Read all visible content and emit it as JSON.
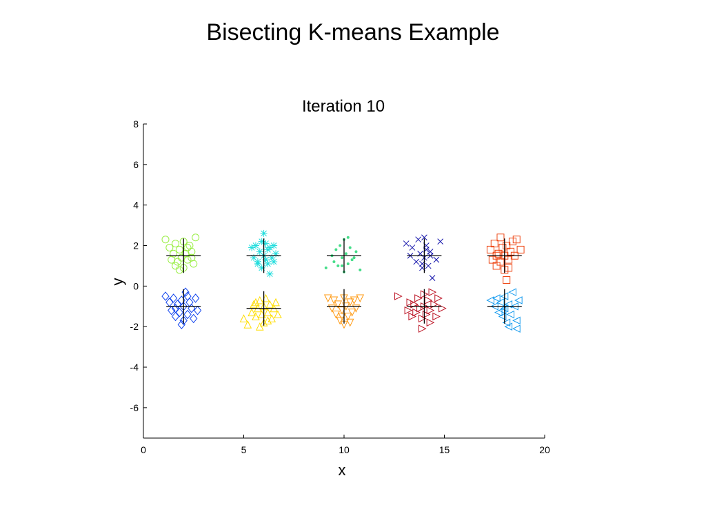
{
  "slide": {
    "title": "Bisecting K-means Example"
  },
  "chart_data": {
    "type": "scatter",
    "title": "Iteration 10",
    "xlabel": "x",
    "ylabel": "y",
    "xlim": [
      0,
      20
    ],
    "ylim": [
      -7.5,
      8
    ],
    "xticks": [
      0,
      5,
      10,
      15,
      20
    ],
    "yticks": [
      -6,
      -4,
      -2,
      0,
      2,
      4,
      6,
      8
    ],
    "grid": false,
    "series": [
      {
        "marker": "circle",
        "color": "#99ee44",
        "centroid": [
          2,
          1.5
        ],
        "points": [
          [
            1.1,
            2.3
          ],
          [
            1.3,
            1.9
          ],
          [
            1.5,
            1.6
          ],
          [
            1.6,
            2.1
          ],
          [
            1.7,
            1.2
          ],
          [
            1.8,
            1.8
          ],
          [
            1.9,
            1.4
          ],
          [
            2.0,
            2.2
          ],
          [
            2.0,
            0.9
          ],
          [
            2.1,
            1.6
          ],
          [
            2.2,
            1.3
          ],
          [
            2.3,
            2.0
          ],
          [
            2.4,
            1.7
          ],
          [
            2.5,
            1.1
          ],
          [
            2.6,
            2.4
          ],
          [
            1.4,
            1.3
          ],
          [
            1.8,
            0.8
          ],
          [
            2.2,
            1.9
          ],
          [
            1.6,
            1.0
          ],
          [
            2.4,
            1.4
          ]
        ]
      },
      {
        "marker": "asterisk",
        "color": "#22dddd",
        "centroid": [
          6,
          1.5
        ],
        "points": [
          [
            5.4,
            1.9
          ],
          [
            5.5,
            1.4
          ],
          [
            5.6,
            2.0
          ],
          [
            5.7,
            1.2
          ],
          [
            5.8,
            1.7
          ],
          [
            5.9,
            0.9
          ],
          [
            6.0,
            2.6
          ],
          [
            6.0,
            1.5
          ],
          [
            6.1,
            2.1
          ],
          [
            6.2,
            1.1
          ],
          [
            6.2,
            1.8
          ],
          [
            6.3,
            0.6
          ],
          [
            6.4,
            1.4
          ],
          [
            6.5,
            2.0
          ],
          [
            6.6,
            1.6
          ],
          [
            5.7,
            1.1
          ],
          [
            6.1,
            1.3
          ],
          [
            5.9,
            2.2
          ],
          [
            6.3,
            1.9
          ],
          [
            6.5,
            1.2
          ]
        ]
      },
      {
        "marker": "dot",
        "color": "#44dd88",
        "centroid": [
          10,
          1.5
        ],
        "points": [
          [
            9.1,
            0.9
          ],
          [
            9.4,
            1.5
          ],
          [
            9.5,
            1.2
          ],
          [
            9.6,
            1.8
          ],
          [
            9.7,
            1.0
          ],
          [
            9.8,
            2.0
          ],
          [
            9.9,
            1.4
          ],
          [
            10.0,
            2.3
          ],
          [
            10.0,
            0.7
          ],
          [
            10.1,
            1.6
          ],
          [
            10.2,
            1.1
          ],
          [
            10.3,
            1.9
          ],
          [
            10.4,
            1.3
          ],
          [
            10.6,
            1.7
          ],
          [
            10.8,
            0.8
          ],
          [
            9.9,
            1.0
          ],
          [
            10.2,
            2.4
          ],
          [
            10.5,
            1.4
          ]
        ]
      },
      {
        "marker": "x",
        "color": "#1111aa",
        "centroid": [
          14,
          1.5
        ],
        "points": [
          [
            13.1,
            2.1
          ],
          [
            13.3,
            1.5
          ],
          [
            13.4,
            1.9
          ],
          [
            13.6,
            1.2
          ],
          [
            13.7,
            2.3
          ],
          [
            13.8,
            1.6
          ],
          [
            13.9,
            0.9
          ],
          [
            14.0,
            2.4
          ],
          [
            14.0,
            1.4
          ],
          [
            14.1,
            1.8
          ],
          [
            14.2,
            1.0
          ],
          [
            14.3,
            1.7
          ],
          [
            14.4,
            0.4
          ],
          [
            14.6,
            1.3
          ],
          [
            14.8,
            2.2
          ],
          [
            13.9,
            1.1
          ],
          [
            14.1,
            2.0
          ],
          [
            14.3,
            1.5
          ]
        ]
      },
      {
        "marker": "square",
        "color": "#ee4411",
        "centroid": [
          18,
          1.5
        ],
        "points": [
          [
            17.3,
            1.8
          ],
          [
            17.4,
            1.3
          ],
          [
            17.5,
            2.1
          ],
          [
            17.6,
            1.0
          ],
          [
            17.7,
            1.6
          ],
          [
            17.8,
            2.4
          ],
          [
            17.8,
            1.2
          ],
          [
            17.9,
            1.9
          ],
          [
            18.0,
            0.8
          ],
          [
            18.0,
            1.5
          ],
          [
            18.1,
            2.0
          ],
          [
            18.1,
            0.3
          ],
          [
            18.2,
            1.3
          ],
          [
            18.3,
            1.7
          ],
          [
            18.4,
            2.2
          ],
          [
            18.5,
            1.5
          ],
          [
            18.6,
            2.3
          ],
          [
            18.8,
            1.8
          ],
          [
            17.6,
            1.5
          ],
          [
            18.2,
            0.9
          ]
        ]
      },
      {
        "marker": "diamond",
        "color": "#1144ee",
        "centroid": [
          2,
          -1
        ],
        "points": [
          [
            1.1,
            -0.5
          ],
          [
            1.3,
            -0.8
          ],
          [
            1.4,
            -1.2
          ],
          [
            1.5,
            -0.6
          ],
          [
            1.6,
            -1.5
          ],
          [
            1.7,
            -0.9
          ],
          [
            1.8,
            -1.3
          ],
          [
            1.9,
            -0.7
          ],
          [
            2.0,
            -1.7
          ],
          [
            2.0,
            -1.0
          ],
          [
            2.1,
            -0.3
          ],
          [
            2.2,
            -1.4
          ],
          [
            2.3,
            -0.8
          ],
          [
            2.4,
            -1.1
          ],
          [
            2.5,
            -1.6
          ],
          [
            2.6,
            -0.6
          ],
          [
            2.7,
            -1.2
          ],
          [
            1.9,
            -1.9
          ],
          [
            2.2,
            -0.5
          ],
          [
            1.6,
            -1.1
          ]
        ]
      },
      {
        "marker": "triangle-up",
        "color": "#ffdd00",
        "centroid": [
          6,
          -1.1
        ],
        "points": [
          [
            5.0,
            -1.6
          ],
          [
            5.2,
            -1.9
          ],
          [
            5.4,
            -1.3
          ],
          [
            5.5,
            -0.9
          ],
          [
            5.6,
            -1.5
          ],
          [
            5.7,
            -1.1
          ],
          [
            5.8,
            -0.7
          ],
          [
            5.9,
            -1.4
          ],
          [
            6.0,
            -1.8
          ],
          [
            6.0,
            -1.0
          ],
          [
            6.1,
            -0.6
          ],
          [
            6.2,
            -1.3
          ],
          [
            6.3,
            -0.9
          ],
          [
            6.4,
            -1.6
          ],
          [
            6.5,
            -1.1
          ],
          [
            6.6,
            -0.8
          ],
          [
            6.7,
            -1.4
          ],
          [
            5.8,
            -2.0
          ],
          [
            6.2,
            -1.7
          ],
          [
            5.6,
            -0.8
          ]
        ]
      },
      {
        "marker": "triangle-down",
        "color": "#ff9911",
        "centroid": [
          10,
          -1
        ],
        "points": [
          [
            9.2,
            -0.6
          ],
          [
            9.4,
            -1.1
          ],
          [
            9.5,
            -0.7
          ],
          [
            9.6,
            -1.4
          ],
          [
            9.7,
            -0.9
          ],
          [
            9.8,
            -1.7
          ],
          [
            9.9,
            -1.2
          ],
          [
            10.0,
            -0.6
          ],
          [
            10.0,
            -1.9
          ],
          [
            10.1,
            -1.0
          ],
          [
            10.2,
            -1.5
          ],
          [
            10.3,
            -0.8
          ],
          [
            10.4,
            -1.3
          ],
          [
            10.5,
            -0.7
          ],
          [
            10.6,
            -1.1
          ],
          [
            10.8,
            -0.6
          ],
          [
            9.9,
            -1.5
          ],
          [
            10.3,
            -1.8
          ]
        ]
      },
      {
        "marker": "triangle-right",
        "color": "#bb1122",
        "centroid": [
          14,
          -1
        ],
        "points": [
          [
            12.7,
            -0.5
          ],
          [
            13.2,
            -1.2
          ],
          [
            13.3,
            -0.8
          ],
          [
            13.4,
            -1.5
          ],
          [
            13.5,
            -0.9
          ],
          [
            13.6,
            -1.3
          ],
          [
            13.7,
            -0.6
          ],
          [
            13.8,
            -1.1
          ],
          [
            13.9,
            -1.6
          ],
          [
            14.0,
            -0.4
          ],
          [
            14.0,
            -1.0
          ],
          [
            14.1,
            -1.4
          ],
          [
            14.2,
            -0.7
          ],
          [
            14.3,
            -1.2
          ],
          [
            14.4,
            -0.3
          ],
          [
            14.5,
            -0.9
          ],
          [
            14.6,
            -1.5
          ],
          [
            14.7,
            -0.6
          ],
          [
            14.9,
            -1.1
          ],
          [
            13.9,
            -2.1
          ],
          [
            14.3,
            -1.8
          ]
        ]
      },
      {
        "marker": "triangle-left",
        "color": "#1199ee",
        "centroid": [
          18,
          -1
        ],
        "points": [
          [
            17.3,
            -0.7
          ],
          [
            17.5,
            -1.0
          ],
          [
            17.6,
            -0.6
          ],
          [
            17.7,
            -1.3
          ],
          [
            17.8,
            -0.8
          ],
          [
            17.9,
            -1.5
          ],
          [
            18.0,
            -0.5
          ],
          [
            18.0,
            -1.1
          ],
          [
            18.1,
            -1.8
          ],
          [
            18.2,
            -0.9
          ],
          [
            18.3,
            -1.4
          ],
          [
            18.4,
            -0.3
          ],
          [
            18.5,
            -1.0
          ],
          [
            18.6,
            -1.7
          ],
          [
            18.7,
            -0.7
          ],
          [
            18.2,
            -2.0
          ],
          [
            18.6,
            -2.1
          ],
          [
            17.9,
            -1.2
          ]
        ]
      }
    ]
  }
}
